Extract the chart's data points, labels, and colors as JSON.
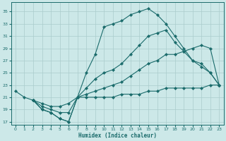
{
  "xlabel": "Humidex (Indice chaleur)",
  "bg_color": "#cce8e8",
  "grid_color": "#aacccc",
  "line_color": "#1a6b6b",
  "xlim": [
    -0.5,
    23.5
  ],
  "ylim": [
    16.5,
    36.5
  ],
  "yticks": [
    17,
    19,
    21,
    23,
    25,
    27,
    29,
    31,
    33,
    35
  ],
  "xticks": [
    0,
    1,
    2,
    3,
    4,
    5,
    6,
    7,
    8,
    9,
    10,
    11,
    12,
    13,
    14,
    15,
    16,
    17,
    18,
    19,
    20,
    21,
    22,
    23
  ],
  "curve1_x": [
    0,
    1,
    2,
    3,
    4,
    5,
    6,
    7,
    8,
    9,
    10,
    11,
    12,
    13,
    14,
    15,
    16,
    17,
    18,
    19,
    20,
    21,
    22,
    23
  ],
  "curve1_y": [
    22,
    21,
    20.5,
    19,
    18.5,
    17.5,
    17,
    21,
    25,
    28,
    32.5,
    33,
    33.5,
    34.5,
    35,
    35.5,
    34.5,
    33,
    31,
    29,
    27,
    26.5,
    25,
    23
  ],
  "curve2_x": [
    2,
    3,
    4,
    5,
    6,
    7,
    8,
    9,
    10,
    11,
    12,
    13,
    14,
    15,
    16,
    17,
    18,
    19,
    20,
    21,
    22,
    23
  ],
  "curve2_y": [
    20.5,
    19,
    18.5,
    17.5,
    17,
    21,
    22.5,
    24,
    25,
    25.5,
    26.5,
    28,
    29.5,
    31,
    31.5,
    32,
    30,
    28.5,
    27,
    26,
    25,
    23
  ],
  "curve3_x": [
    2,
    3,
    4,
    5,
    6,
    7,
    8,
    9,
    10,
    11,
    12,
    13,
    14,
    15,
    16,
    17,
    18,
    19,
    20,
    21,
    22,
    23
  ],
  "curve3_y": [
    20.5,
    20,
    19.5,
    19.5,
    20,
    21,
    21.5,
    22,
    22.5,
    23,
    23.5,
    24.5,
    25.5,
    26.5,
    27,
    28,
    28,
    28.5,
    29,
    29.5,
    29,
    23
  ],
  "curve4_x": [
    2,
    3,
    4,
    5,
    6,
    7,
    8,
    9,
    10,
    11,
    12,
    13,
    14,
    15,
    16,
    17,
    18,
    19,
    20,
    21,
    22,
    23
  ],
  "curve4_y": [
    20.5,
    19.5,
    19,
    18.5,
    18.5,
    21,
    21,
    21,
    21,
    21,
    21.5,
    21.5,
    21.5,
    22,
    22,
    22.5,
    22.5,
    22.5,
    22.5,
    22.5,
    23,
    23
  ]
}
